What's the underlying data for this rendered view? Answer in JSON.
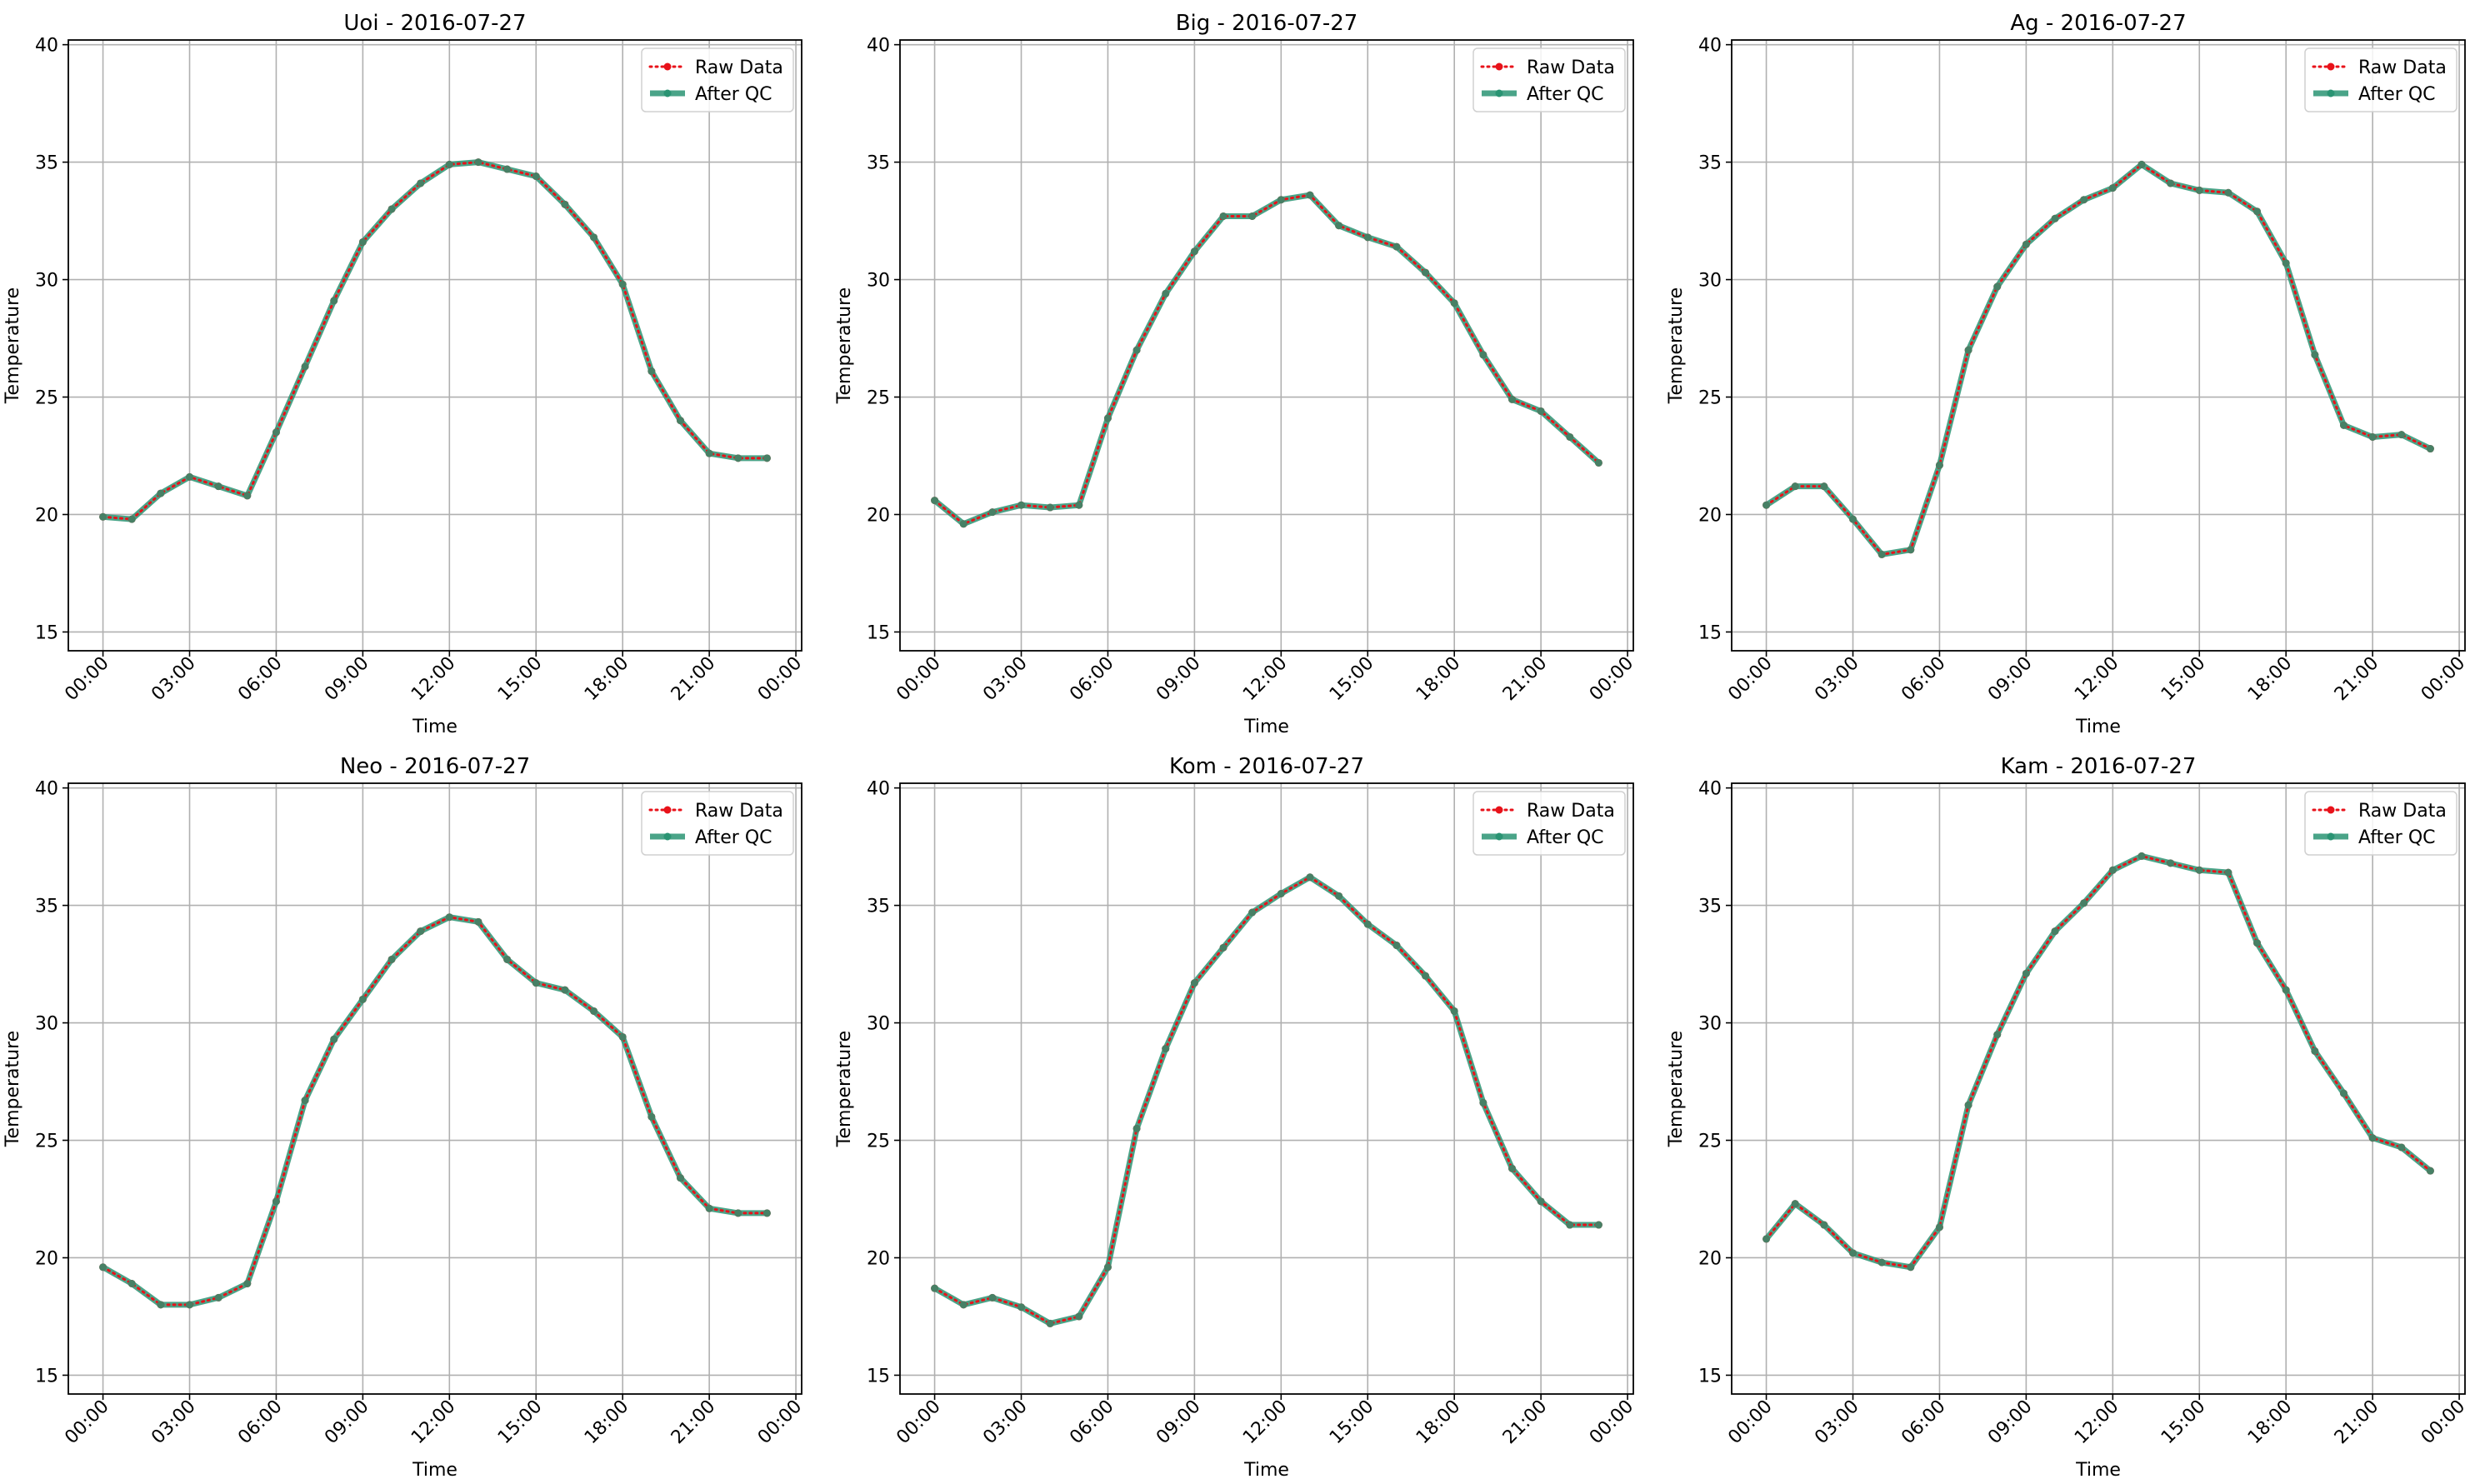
{
  "figure": {
    "legend_labels": [
      "Raw Data",
      "After QC"
    ],
    "xlabel": "Time",
    "ylabel": "Temperature",
    "x_tick_labels": [
      "00:00",
      "03:00",
      "06:00",
      "09:00",
      "12:00",
      "15:00",
      "18:00",
      "21:00",
      "00:00"
    ],
    "colors": {
      "raw": "#e8121a",
      "qc": "#2a9473",
      "grid": "#b0b0b0"
    }
  },
  "chart_data": [
    {
      "type": "line",
      "title": "Uoi - 2016-07-27",
      "xlabel": "Time",
      "ylabel": "Temperature",
      "x_unit": "hour",
      "x": [
        0,
        1,
        2,
        3,
        4,
        5,
        6,
        7,
        8,
        9,
        10,
        11,
        12,
        13,
        14,
        15,
        16,
        17,
        18,
        19,
        20,
        21,
        22,
        23
      ],
      "xlim": [
        -1.2,
        24.2
      ],
      "ylim": [
        14.2,
        40.2
      ],
      "yticks": [
        15,
        20,
        25,
        30,
        35,
        40
      ],
      "xticks": [
        0,
        3,
        6,
        9,
        12,
        15,
        18,
        21,
        24
      ],
      "grid": true,
      "legend_position": "upper-right",
      "series": [
        {
          "name": "Raw Data",
          "style": "dotted",
          "values": [
            19.9,
            19.8,
            20.9,
            21.6,
            21.2,
            20.8,
            23.5,
            26.3,
            29.1,
            31.6,
            33.0,
            34.1,
            34.9,
            35.0,
            34.7,
            34.4,
            33.2,
            31.8,
            29.8,
            26.1,
            24.0,
            22.6,
            22.4,
            22.4
          ]
        },
        {
          "name": "After QC",
          "style": "solid",
          "values": [
            19.9,
            19.8,
            20.9,
            21.6,
            21.2,
            20.8,
            23.5,
            26.3,
            29.1,
            31.6,
            33.0,
            34.1,
            34.9,
            35.0,
            34.7,
            34.4,
            33.2,
            31.8,
            29.8,
            26.1,
            24.0,
            22.6,
            22.4,
            22.4
          ]
        }
      ]
    },
    {
      "type": "line",
      "title": "Big - 2016-07-27",
      "xlabel": "Time",
      "ylabel": "Temperature",
      "x_unit": "hour",
      "x": [
        0,
        1,
        2,
        3,
        4,
        5,
        6,
        7,
        8,
        9,
        10,
        11,
        12,
        13,
        14,
        15,
        16,
        17,
        18,
        19,
        20,
        21,
        22,
        23
      ],
      "xlim": [
        -1.2,
        24.2
      ],
      "ylim": [
        14.2,
        40.2
      ],
      "yticks": [
        15,
        20,
        25,
        30,
        35,
        40
      ],
      "xticks": [
        0,
        3,
        6,
        9,
        12,
        15,
        18,
        21,
        24
      ],
      "grid": true,
      "legend_position": "upper-right",
      "series": [
        {
          "name": "Raw Data",
          "style": "dotted",
          "values": [
            20.6,
            19.6,
            20.1,
            20.4,
            20.3,
            20.4,
            24.1,
            27.0,
            29.4,
            31.2,
            32.7,
            32.7,
            33.4,
            33.6,
            32.3,
            31.8,
            31.4,
            30.3,
            29.0,
            26.8,
            24.9,
            24.4,
            23.3,
            22.2
          ]
        },
        {
          "name": "After QC",
          "style": "solid",
          "values": [
            20.6,
            19.6,
            20.1,
            20.4,
            20.3,
            20.4,
            24.1,
            27.0,
            29.4,
            31.2,
            32.7,
            32.7,
            33.4,
            33.6,
            32.3,
            31.8,
            31.4,
            30.3,
            29.0,
            26.8,
            24.9,
            24.4,
            23.3,
            22.2
          ]
        }
      ]
    },
    {
      "type": "line",
      "title": "Ag - 2016-07-27",
      "xlabel": "Time",
      "ylabel": "Temperature",
      "x_unit": "hour",
      "x": [
        0,
        1,
        2,
        3,
        4,
        5,
        6,
        7,
        8,
        9,
        10,
        11,
        12,
        13,
        14,
        15,
        16,
        17,
        18,
        19,
        20,
        21,
        22,
        23
      ],
      "xlim": [
        -1.2,
        24.2
      ],
      "ylim": [
        14.2,
        40.2
      ],
      "yticks": [
        15,
        20,
        25,
        30,
        35,
        40
      ],
      "xticks": [
        0,
        3,
        6,
        9,
        12,
        15,
        18,
        21,
        24
      ],
      "grid": true,
      "legend_position": "upper-right",
      "series": [
        {
          "name": "Raw Data",
          "style": "dotted",
          "values": [
            20.4,
            21.2,
            21.2,
            19.8,
            18.3,
            18.5,
            22.1,
            27.0,
            29.7,
            31.5,
            32.6,
            33.4,
            33.9,
            34.9,
            34.1,
            33.8,
            33.7,
            32.9,
            30.7,
            26.8,
            23.8,
            23.3,
            23.4,
            22.8
          ]
        },
        {
          "name": "After QC",
          "style": "solid",
          "values": [
            20.4,
            21.2,
            21.2,
            19.8,
            18.3,
            18.5,
            22.1,
            27.0,
            29.7,
            31.5,
            32.6,
            33.4,
            33.9,
            34.9,
            34.1,
            33.8,
            33.7,
            32.9,
            30.7,
            26.8,
            23.8,
            23.3,
            23.4,
            22.8
          ]
        }
      ]
    },
    {
      "type": "line",
      "title": "Neo - 2016-07-27",
      "xlabel": "Time",
      "ylabel": "Temperature",
      "x_unit": "hour",
      "x": [
        0,
        1,
        2,
        3,
        4,
        5,
        6,
        7,
        8,
        9,
        10,
        11,
        12,
        13,
        14,
        15,
        16,
        17,
        18,
        19,
        20,
        21,
        22,
        23
      ],
      "xlim": [
        -1.2,
        24.2
      ],
      "ylim": [
        14.2,
        40.2
      ],
      "yticks": [
        15,
        20,
        25,
        30,
        35,
        40
      ],
      "xticks": [
        0,
        3,
        6,
        9,
        12,
        15,
        18,
        21,
        24
      ],
      "grid": true,
      "legend_position": "upper-right",
      "series": [
        {
          "name": "Raw Data",
          "style": "dotted",
          "values": [
            19.6,
            18.9,
            18.0,
            18.0,
            18.3,
            18.9,
            22.4,
            26.7,
            29.3,
            31.0,
            32.7,
            33.9,
            34.5,
            34.3,
            32.7,
            31.7,
            31.4,
            30.5,
            29.4,
            26.0,
            23.4,
            22.1,
            21.9,
            21.9
          ]
        },
        {
          "name": "After QC",
          "style": "solid",
          "values": [
            19.6,
            18.9,
            18.0,
            18.0,
            18.3,
            18.9,
            22.4,
            26.7,
            29.3,
            31.0,
            32.7,
            33.9,
            34.5,
            34.3,
            32.7,
            31.7,
            31.4,
            30.5,
            29.4,
            26.0,
            23.4,
            22.1,
            21.9,
            21.9
          ]
        }
      ]
    },
    {
      "type": "line",
      "title": "Kom - 2016-07-27",
      "xlabel": "Time",
      "ylabel": "Temperature",
      "x_unit": "hour",
      "x": [
        0,
        1,
        2,
        3,
        4,
        5,
        6,
        7,
        8,
        9,
        10,
        11,
        12,
        13,
        14,
        15,
        16,
        17,
        18,
        19,
        20,
        21,
        22,
        23
      ],
      "xlim": [
        -1.2,
        24.2
      ],
      "ylim": [
        14.2,
        40.2
      ],
      "yticks": [
        15,
        20,
        25,
        30,
        35,
        40
      ],
      "xticks": [
        0,
        3,
        6,
        9,
        12,
        15,
        18,
        21,
        24
      ],
      "grid": true,
      "legend_position": "upper-right",
      "series": [
        {
          "name": "Raw Data",
          "style": "dotted",
          "values": [
            18.7,
            18.0,
            18.3,
            17.9,
            17.2,
            17.5,
            19.6,
            25.5,
            28.9,
            31.7,
            33.2,
            34.7,
            35.5,
            36.2,
            35.4,
            34.2,
            33.3,
            32.0,
            30.5,
            26.6,
            23.8,
            22.4,
            21.4,
            21.4
          ]
        },
        {
          "name": "After QC",
          "style": "solid",
          "values": [
            18.7,
            18.0,
            18.3,
            17.9,
            17.2,
            17.5,
            19.6,
            25.5,
            28.9,
            31.7,
            33.2,
            34.7,
            35.5,
            36.2,
            35.4,
            34.2,
            33.3,
            32.0,
            30.5,
            26.6,
            23.8,
            22.4,
            21.4,
            21.4
          ]
        }
      ]
    },
    {
      "type": "line",
      "title": "Kam - 2016-07-27",
      "xlabel": "Time",
      "ylabel": "Temperature",
      "x_unit": "hour",
      "x": [
        0,
        1,
        2,
        3,
        4,
        5,
        6,
        7,
        8,
        9,
        10,
        11,
        12,
        13,
        14,
        15,
        16,
        17,
        18,
        19,
        20,
        21,
        22,
        23
      ],
      "xlim": [
        -1.2,
        24.2
      ],
      "ylim": [
        14.2,
        40.2
      ],
      "yticks": [
        15,
        20,
        25,
        30,
        35,
        40
      ],
      "xticks": [
        0,
        3,
        6,
        9,
        12,
        15,
        18,
        21,
        24
      ],
      "grid": true,
      "legend_position": "upper-right",
      "series": [
        {
          "name": "Raw Data",
          "style": "dotted",
          "values": [
            20.8,
            22.3,
            21.4,
            20.2,
            19.8,
            19.6,
            21.3,
            26.5,
            29.5,
            32.1,
            33.9,
            35.1,
            36.5,
            37.1,
            36.8,
            36.5,
            36.4,
            33.4,
            31.4,
            28.8,
            27.0,
            25.1,
            24.7,
            23.7
          ]
        },
        {
          "name": "After QC",
          "style": "solid",
          "values": [
            20.8,
            22.3,
            21.4,
            20.2,
            19.8,
            19.6,
            21.3,
            26.5,
            29.5,
            32.1,
            33.9,
            35.1,
            36.5,
            37.1,
            36.8,
            36.5,
            36.4,
            33.4,
            31.4,
            28.8,
            27.0,
            25.1,
            24.7,
            23.7
          ]
        }
      ]
    }
  ]
}
